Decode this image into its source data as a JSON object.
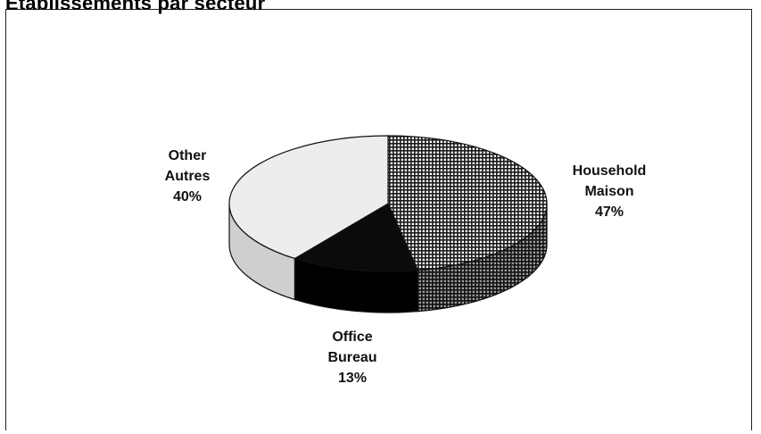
{
  "chart_data": {
    "type": "pie",
    "title": "Établissements par secteur",
    "slices": [
      {
        "line1": "Household",
        "line2": "Maison",
        "pct_label": "47%",
        "value": 47,
        "pattern": "crosshatch"
      },
      {
        "line1": "Office",
        "line2": "Bureau",
        "pct_label": "13%",
        "value": 13,
        "pattern": "black"
      },
      {
        "line1": "Other",
        "line2": "Autres",
        "pct_label": "40%",
        "value": 40,
        "pattern": "light-gray"
      }
    ]
  }
}
